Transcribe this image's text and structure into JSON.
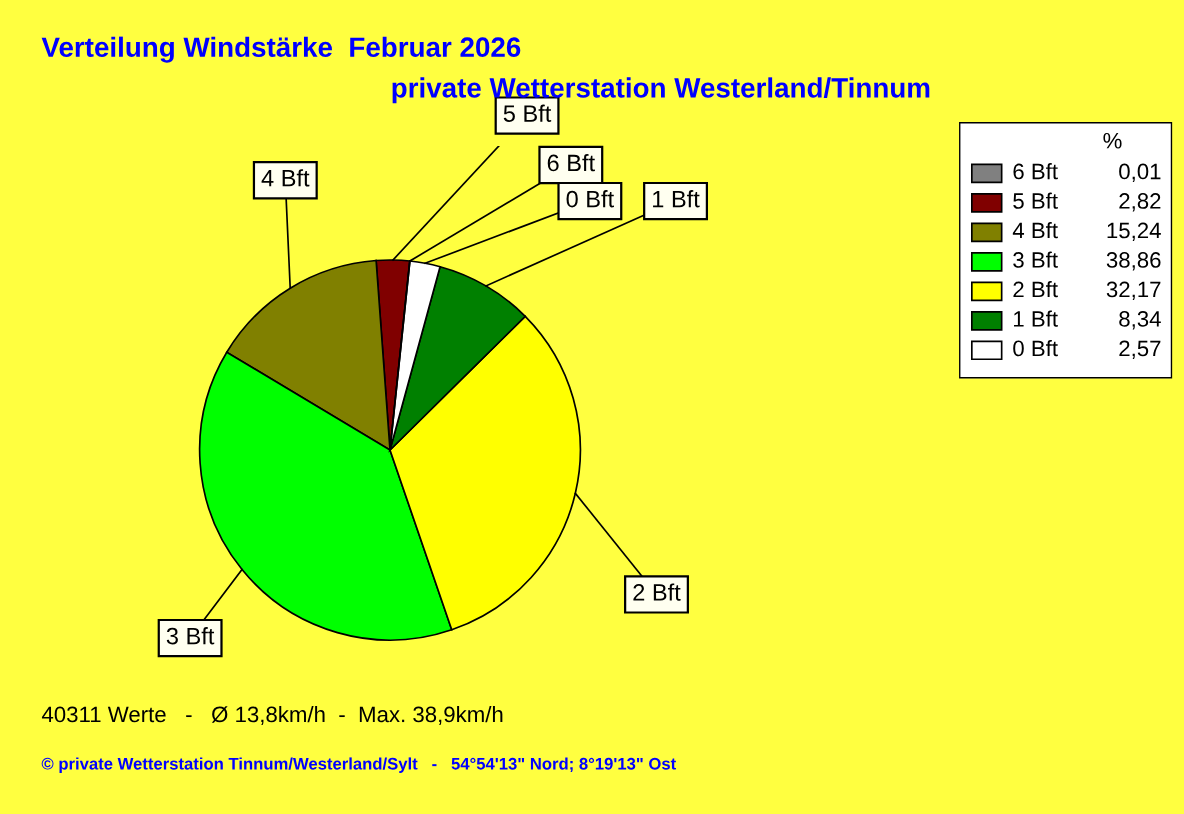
{
  "chart_data": {
    "type": "pie",
    "title": "Verteilung Windstärke  Februar 2026",
    "subtitle": "private Wetterstation Westerland/Tinnum",
    "categories": [
      "6 Bft",
      "5 Bft",
      "4 Bft",
      "3 Bft",
      "2 Bft",
      "1 Bft",
      "0 Bft"
    ],
    "values": [
      0.01,
      2.82,
      15.24,
      38.86,
      32.17,
      8.34,
      2.57
    ],
    "value_labels": [
      "0,01",
      "2,82",
      "15,24",
      "38,86",
      "32,17",
      "8,34",
      "2,57"
    ],
    "colors": [
      "#808080",
      "#800000",
      "#808000",
      "#00ff00",
      "#ffff00",
      "#008000",
      "#ffffff"
    ],
    "legend_title": "%",
    "legend": "top right",
    "annotations": [
      "40311 Werte   -   Ø 13,8km/h  -  Max. 38,9km/h",
      "© private Wetterstation Tinnum/Westerland/Sylt   -   54°54'13\" Nord; 8°19'13\" Ost"
    ]
  }
}
